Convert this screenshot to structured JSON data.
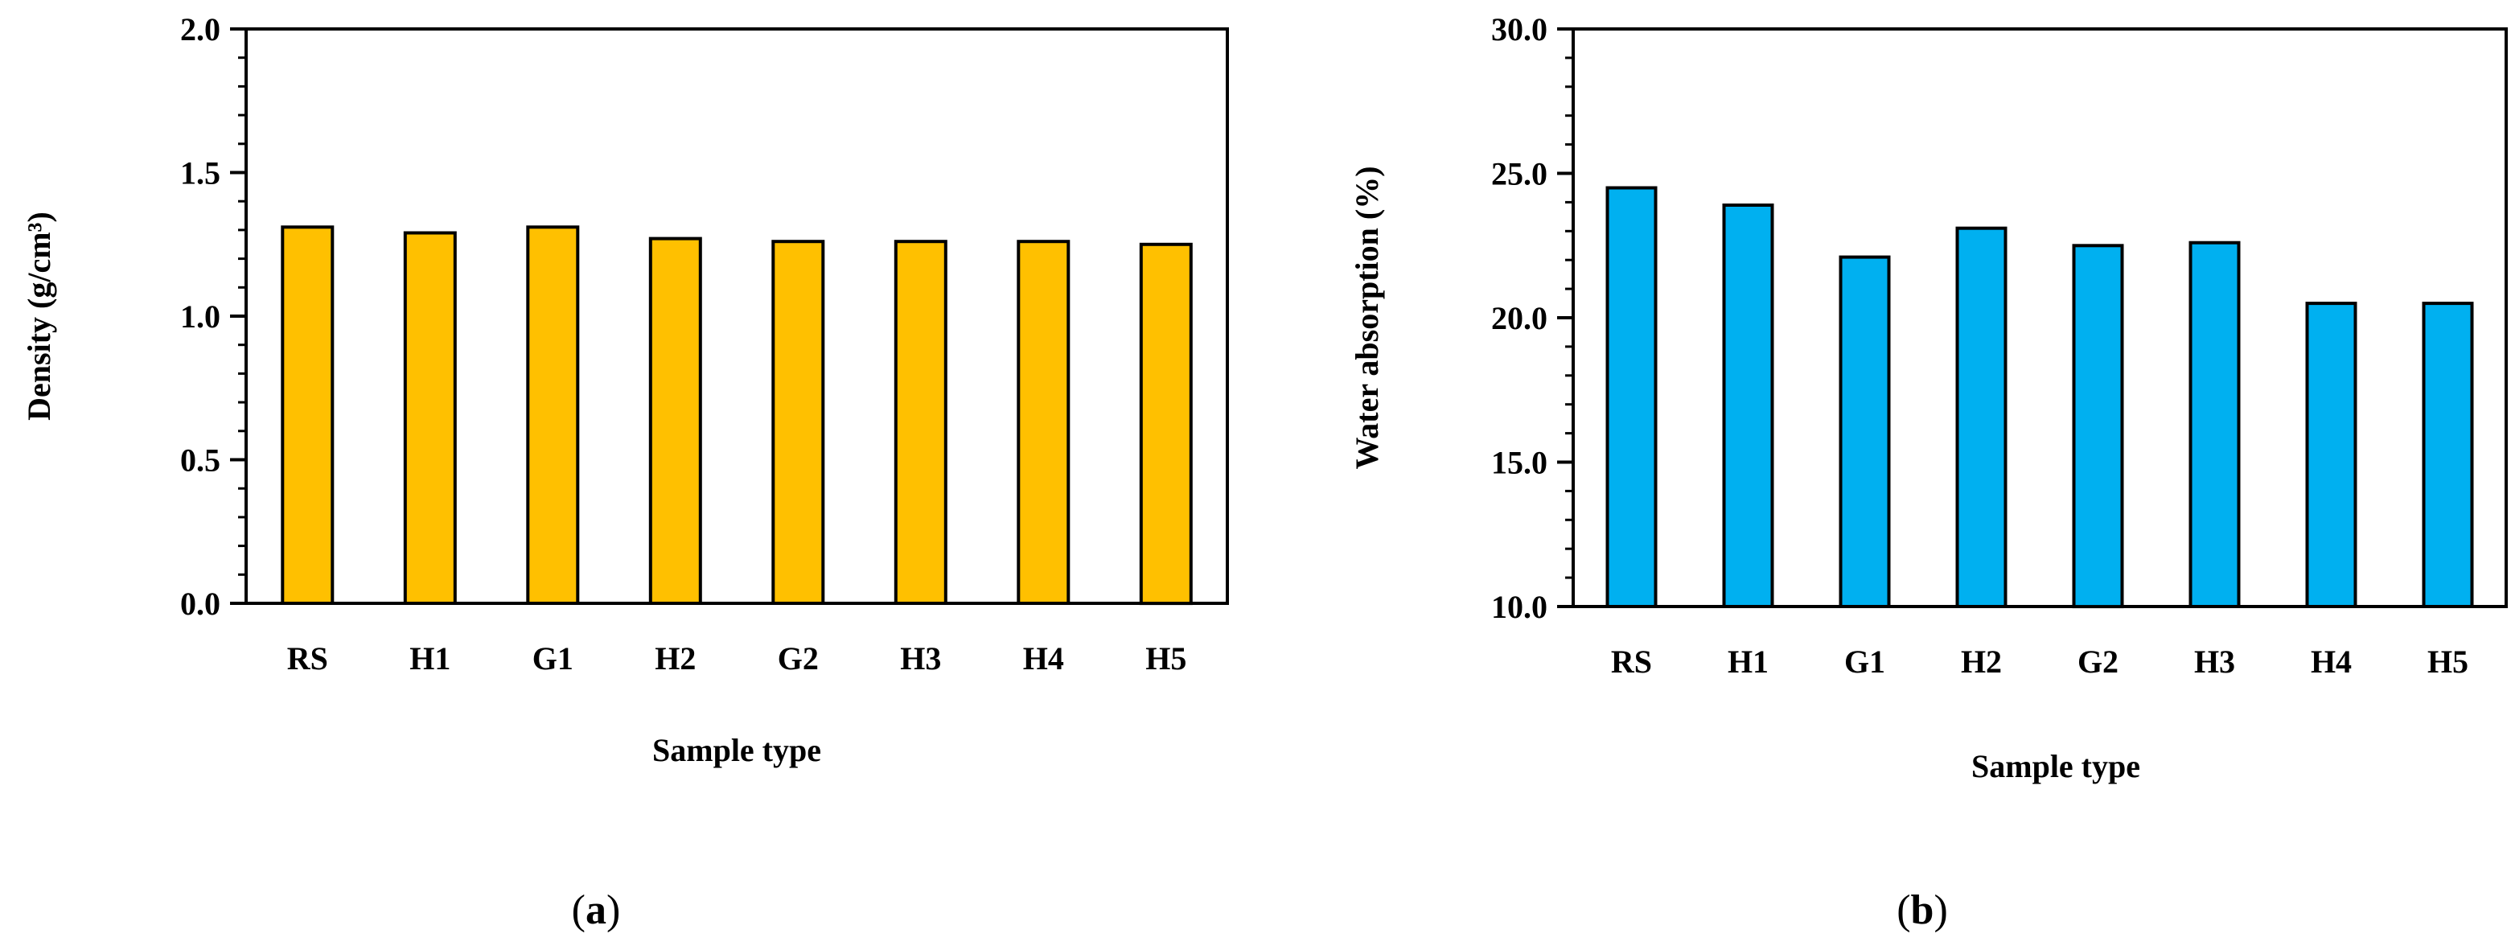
{
  "chart_data": [
    {
      "type": "bar",
      "panel_label": "(a)",
      "panel_letter": "a",
      "title": "",
      "xlabel": "Sample type",
      "ylabel": "Density (g/cm³)",
      "categories": [
        "RS",
        "H1",
        "G1",
        "H2",
        "G2",
        "H3",
        "H4",
        "H5"
      ],
      "values": [
        1.31,
        1.29,
        1.31,
        1.27,
        1.26,
        1.26,
        1.26,
        1.25
      ],
      "ylim": [
        0.0,
        2.0
      ],
      "yticks": [
        0.0,
        0.5,
        1.0,
        1.5,
        2.0
      ],
      "ytick_labels": [
        "0.0",
        "0.5",
        "1.0",
        "1.5",
        "2.0"
      ],
      "grid": false,
      "bar_color": "#FFC000"
    },
    {
      "type": "bar",
      "panel_label": "(b)",
      "panel_letter": "b",
      "title": "",
      "xlabel": "Sample type",
      "ylabel": "Water absorption (%)",
      "categories": [
        "RS",
        "H1",
        "G1",
        "H2",
        "G2",
        "H3",
        "H4",
        "H5"
      ],
      "values": [
        24.5,
        23.9,
        22.1,
        23.1,
        22.5,
        22.6,
        20.5,
        20.5
      ],
      "ylim": [
        10.0,
        30.0
      ],
      "yticks": [
        10.0,
        15.0,
        20.0,
        25.0,
        30.0
      ],
      "ytick_labels": [
        "10.0",
        "15.0",
        "20.0",
        "25.0",
        "30.0"
      ],
      "grid": false,
      "bar_color": "#00B0F0"
    }
  ]
}
